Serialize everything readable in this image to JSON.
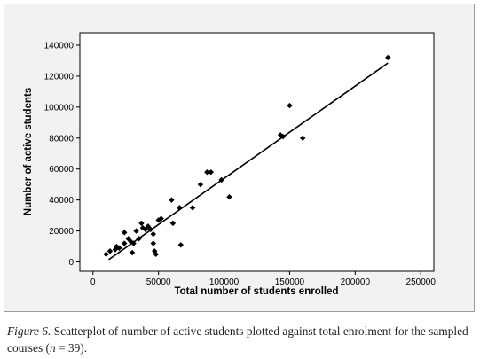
{
  "chart_data": {
    "type": "scatter",
    "title": "",
    "xlabel": "Total number of students enrolled",
    "ylabel": "Number of active students",
    "xlim": [
      -10000,
      260000
    ],
    "ylim": [
      -6000,
      148000
    ],
    "x_ticks": [
      0,
      50000,
      100000,
      150000,
      200000,
      250000
    ],
    "x_tick_labels": [
      "0",
      "50000",
      "100000",
      "150000",
      "200000",
      "250000"
    ],
    "y_ticks": [
      0,
      20000,
      40000,
      60000,
      80000,
      100000,
      120000,
      140000
    ],
    "y_tick_labels": [
      "0",
      "20000",
      "40000",
      "60000",
      "80000",
      "100000",
      "120000",
      "140000"
    ],
    "grid": false,
    "legend": "none",
    "marker": "diamond",
    "marker_color": "#000000",
    "series": [
      {
        "points": [
          [
            10000,
            5000
          ],
          [
            13000,
            7000
          ],
          [
            17000,
            8000
          ],
          [
            18000,
            10000
          ],
          [
            20000,
            9000
          ],
          [
            24000,
            19000
          ],
          [
            27000,
            15000
          ],
          [
            29000,
            13000
          ],
          [
            30000,
            6000
          ],
          [
            31000,
            12000
          ],
          [
            33000,
            20000
          ],
          [
            35000,
            15000
          ],
          [
            37000,
            25000
          ],
          [
            38000,
            22000
          ],
          [
            40000,
            21000
          ],
          [
            42000,
            23000
          ],
          [
            44000,
            21000
          ],
          [
            46000,
            18000
          ],
          [
            46000,
            12000
          ],
          [
            47000,
            7000
          ],
          [
            48000,
            5000
          ],
          [
            50000,
            27000
          ],
          [
            52000,
            28000
          ],
          [
            60000,
            40000
          ],
          [
            61000,
            25000
          ],
          [
            66000,
            35000
          ],
          [
            67000,
            11000
          ],
          [
            76000,
            35000
          ],
          [
            82000,
            50000
          ],
          [
            87000,
            58000
          ],
          [
            90000,
            58000
          ],
          [
            98000,
            53000
          ],
          [
            104000,
            42000
          ],
          [
            143000,
            82000
          ],
          [
            145000,
            81000
          ],
          [
            150000,
            101000
          ],
          [
            160000,
            80000
          ],
          [
            225000,
            132000
          ],
          [
            24000,
            12000
          ]
        ]
      }
    ],
    "trend_line": {
      "x": [
        12000,
        225000
      ],
      "y": [
        1500,
        128500
      ]
    }
  },
  "caption": {
    "figure_label": "Figure 6.",
    "text_before_n": " Scatterplot of number of active students plotted against total enrolment for the sampled courses (",
    "n_symbol": "n",
    "text_after_n": " = 39)."
  }
}
